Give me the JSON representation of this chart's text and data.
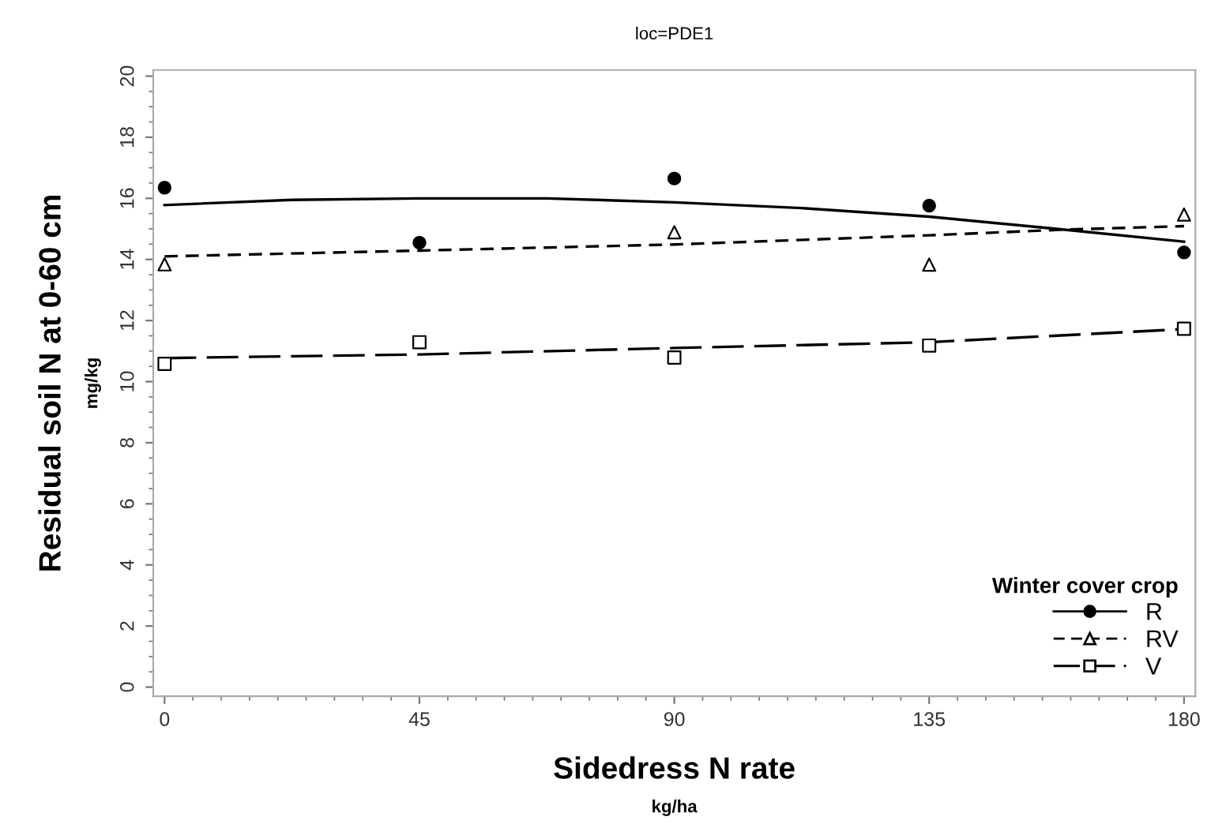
{
  "chart_data": {
    "type": "scatter",
    "title": "loc=PDE1",
    "xlabel": "Sidedress N rate\nkg/ha",
    "ylabel": "Residual soil N at 0-60 cm\nmg/kg",
    "legend_title": "Winter cover crop",
    "x": [
      0,
      45,
      90,
      135,
      180
    ],
    "series": [
      {
        "name": "R",
        "color": "#000000",
        "marker": "circle",
        "line_style": "solid",
        "values": [
          16.35,
          14.55,
          16.65,
          15.76,
          14.23
        ]
      },
      {
        "name": "RV",
        "color": "#000000",
        "marker": "triangle",
        "line_style": "dashed",
        "values": [
          13.84,
          null,
          14.89,
          13.83,
          15.47
        ]
      },
      {
        "name": "V",
        "color": "#000000",
        "marker": "square",
        "line_style": "longdash",
        "values": [
          10.58,
          11.29,
          10.79,
          11.18,
          11.73
        ]
      },
      {
        "type": "line",
        "color": "#000000",
        "line_style": "solid",
        "marker": "none",
        "x": [
          0,
          22.5,
          45,
          67.5,
          90,
          112.5,
          135,
          157.5,
          180
        ],
        "values": [
          15.78,
          15.95,
          16.0,
          16.0,
          15.87,
          15.68,
          15.4,
          15.0,
          14.58
        ]
      },
      {
        "type": "line",
        "color": "#000000",
        "line_style": "dashed",
        "marker": "none",
        "x": [
          0,
          45,
          90,
          135,
          158,
          180
        ],
        "values": [
          14.1,
          14.29,
          14.49,
          14.79,
          14.97,
          15.09
        ]
      },
      {
        "type": "line",
        "color": "#000000",
        "line_style": "longdash",
        "marker": "none",
        "x": [
          0,
          45,
          90,
          135,
          180
        ],
        "values": [
          10.77,
          10.89,
          11.1,
          11.29,
          11.72
        ]
      }
    ],
    "xlim": [
      -2,
      182
    ],
    "xticks": [
      0,
      45,
      90,
      135,
      180
    ],
    "ylim": [
      -0.3,
      20.2
    ],
    "yticks": [
      0,
      2,
      4,
      6,
      8,
      10,
      12,
      14,
      16,
      18,
      20
    ],
    "legend": "bottom right",
    "grid": false
  }
}
